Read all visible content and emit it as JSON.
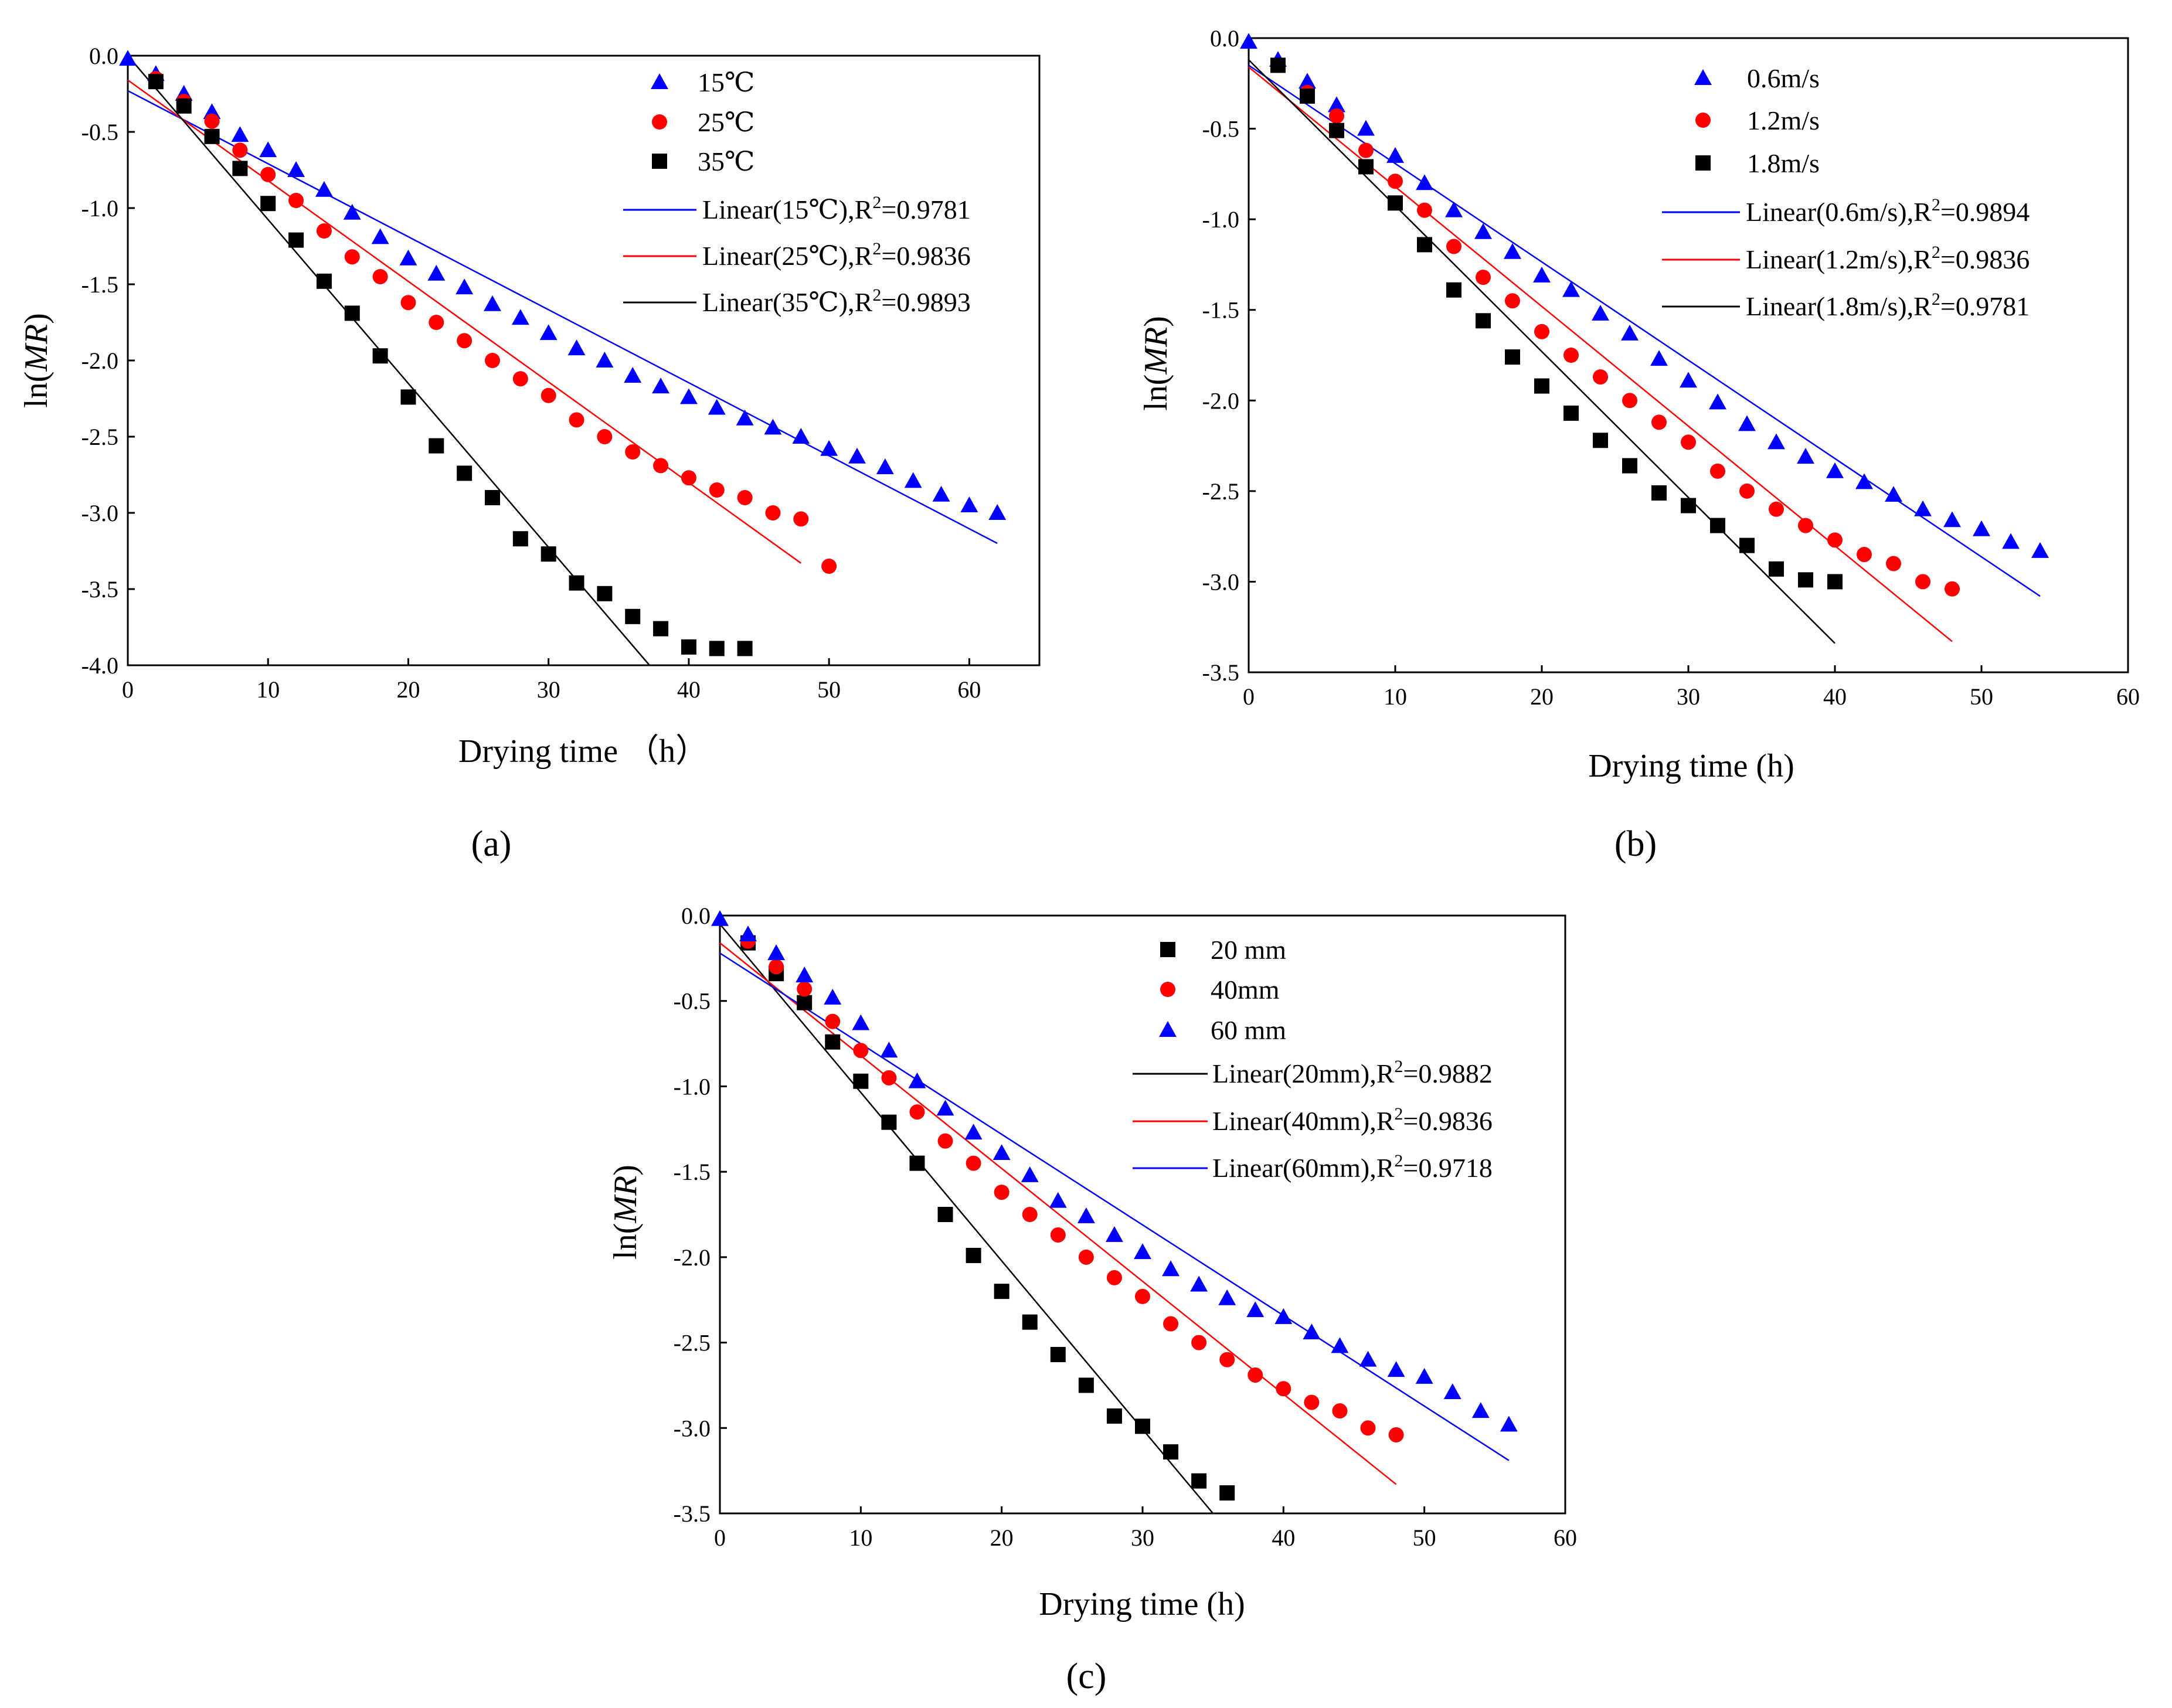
{
  "figure": {
    "colors": {
      "blue": "#0000ff",
      "red": "#ff0000",
      "black": "#000000"
    }
  },
  "chart_data": [
    {
      "type": "scatter",
      "panel_label": "(a)",
      "xlabel": "Drying time （h）",
      "ylabel_prefix": "ln(",
      "ylabel_italic": "MR",
      "ylabel_suffix": ")",
      "xlim": [
        0,
        65
      ],
      "ylim": [
        -4.0,
        0.0
      ],
      "xticks": [
        0,
        10,
        20,
        30,
        40,
        50,
        60
      ],
      "yticks": [
        0.0,
        -0.5,
        -1.0,
        -1.5,
        -2.0,
        -2.5,
        -3.0,
        -3.5,
        -4.0
      ],
      "ytick_labels": [
        "0.0",
        "-0.5",
        "-1.0",
        "-1.5",
        "-2.0",
        "-2.5",
        "-3.0",
        "-3.5",
        "-4.0"
      ],
      "series": [
        {
          "name": "15℃",
          "marker": "triangle",
          "color": "#0000ff",
          "x": [
            0,
            2,
            4,
            6,
            8,
            10,
            12,
            14,
            16,
            18,
            20,
            22,
            24,
            26,
            28,
            30,
            32,
            34,
            36,
            38,
            40,
            42,
            44,
            46,
            48,
            50,
            52,
            54,
            56,
            58,
            60,
            62
          ],
          "y": [
            -0.02,
            -0.12,
            -0.25,
            -0.37,
            -0.52,
            -0.62,
            -0.75,
            -0.88,
            -1.03,
            -1.19,
            -1.33,
            -1.43,
            -1.52,
            -1.63,
            -1.72,
            -1.82,
            -1.92,
            -2.0,
            -2.1,
            -2.17,
            -2.24,
            -2.31,
            -2.38,
            -2.44,
            -2.5,
            -2.58,
            -2.63,
            -2.7,
            -2.79,
            -2.88,
            -2.95,
            -3.0
          ]
        },
        {
          "name": "25℃",
          "marker": "circle",
          "color": "#ff0000",
          "x": [
            2,
            4,
            6,
            8,
            10,
            12,
            14,
            16,
            18,
            20,
            22,
            24,
            26,
            28,
            30,
            32,
            34,
            36,
            38,
            40,
            42,
            44,
            46,
            48,
            50
          ],
          "y": [
            -0.15,
            -0.3,
            -0.43,
            -0.62,
            -0.78,
            -0.95,
            -1.15,
            -1.32,
            -1.45,
            -1.62,
            -1.75,
            -1.87,
            -2.0,
            -2.12,
            -2.23,
            -2.39,
            -2.5,
            -2.6,
            -2.69,
            -2.77,
            -2.85,
            -2.9,
            -3.0,
            -3.04,
            -3.35
          ]
        },
        {
          "name": "35℃",
          "marker": "square",
          "color": "#000000",
          "x": [
            2,
            4,
            6,
            8,
            10,
            12,
            14,
            16,
            18,
            20,
            22,
            24,
            26,
            28,
            30,
            32,
            34,
            36,
            38,
            40,
            42,
            44
          ],
          "y": [
            -0.17,
            -0.33,
            -0.53,
            -0.74,
            -0.97,
            -1.21,
            -1.48,
            -1.69,
            -1.97,
            -2.24,
            -2.56,
            -2.74,
            -2.9,
            -3.17,
            -3.27,
            -3.46,
            -3.53,
            -3.68,
            -3.76,
            -3.88,
            -3.89,
            -3.89
          ]
        }
      ],
      "fits": [
        {
          "name": "Linear(15℃),R",
          "r2": "=0.9781",
          "color": "#0000ff",
          "x": [
            0,
            62
          ],
          "y": [
            -0.23,
            -3.2
          ]
        },
        {
          "name": "Linear(25℃),R",
          "r2": "=0.9836",
          "color": "#ff0000",
          "x": [
            0,
            48
          ],
          "y": [
            -0.16,
            -3.33
          ]
        },
        {
          "name": "Linear(35℃),R",
          "r2": "=0.9893",
          "color": "#000000",
          "x": [
            0,
            37.2
          ],
          "y": [
            0.0,
            -4.0
          ]
        }
      ]
    },
    {
      "type": "scatter",
      "panel_label": "(b)",
      "xlabel": "Drying time (h)",
      "ylabel_prefix": "ln(",
      "ylabel_italic": "MR",
      "ylabel_suffix": ")",
      "xlim": [
        0,
        60
      ],
      "ylim": [
        -3.5,
        0.0
      ],
      "xticks": [
        0,
        10,
        20,
        30,
        40,
        50,
        60
      ],
      "yticks": [
        0.0,
        -0.5,
        -1.0,
        -1.5,
        -2.0,
        -2.5,
        -3.0,
        -3.5
      ],
      "ytick_labels": [
        "0.0",
        "-0.5",
        "-1.0",
        "-1.5",
        "-2.0",
        "-2.5",
        "-3.0",
        "-3.5"
      ],
      "series": [
        {
          "name": "0.6m/s",
          "marker": "triangle",
          "color": "#0000ff",
          "x": [
            0,
            2,
            4,
            6,
            8,
            10,
            12,
            14,
            16,
            18,
            20,
            22,
            24,
            26,
            28,
            30,
            32,
            34,
            36,
            38,
            40,
            42,
            44,
            46,
            48,
            50,
            52,
            54
          ],
          "y": [
            -0.02,
            -0.12,
            -0.24,
            -0.37,
            -0.5,
            -0.65,
            -0.8,
            -0.95,
            -1.07,
            -1.18,
            -1.31,
            -1.39,
            -1.52,
            -1.63,
            -1.77,
            -1.89,
            -2.01,
            -2.13,
            -2.23,
            -2.31,
            -2.39,
            -2.45,
            -2.52,
            -2.6,
            -2.66,
            -2.71,
            -2.78,
            -2.83
          ]
        },
        {
          "name": "1.2m/s",
          "marker": "circle",
          "color": "#ff0000",
          "x": [
            2,
            4,
            6,
            8,
            10,
            12,
            14,
            16,
            18,
            20,
            22,
            24,
            26,
            28,
            30,
            32,
            34,
            36,
            38,
            40,
            42,
            44,
            46,
            48
          ],
          "y": [
            -0.15,
            -0.3,
            -0.43,
            -0.62,
            -0.79,
            -0.95,
            -1.15,
            -1.32,
            -1.45,
            -1.62,
            -1.75,
            -1.87,
            -2.0,
            -2.12,
            -2.23,
            -2.39,
            -2.5,
            -2.6,
            -2.69,
            -2.77,
            -2.85,
            -2.9,
            -3.0,
            -3.04
          ]
        },
        {
          "name": "1.8m/s",
          "marker": "square",
          "color": "#000000",
          "x": [
            2,
            4,
            6,
            8,
            10,
            12,
            14,
            16,
            18,
            20,
            22,
            24,
            26,
            28,
            30,
            32,
            34,
            36,
            38,
            40
          ],
          "y": [
            -0.15,
            -0.32,
            -0.51,
            -0.71,
            -0.91,
            -1.14,
            -1.39,
            -1.56,
            -1.76,
            -1.92,
            -2.07,
            -2.22,
            -2.36,
            -2.51,
            -2.58,
            -2.69,
            -2.8,
            -2.93,
            -2.99,
            -3.0
          ]
        }
      ],
      "fits": [
        {
          "name": "Linear(0.6m/s),R",
          "r2": "=0.9894",
          "color": "#0000ff",
          "x": [
            0,
            54
          ],
          "y": [
            -0.15,
            -3.08
          ]
        },
        {
          "name": "Linear(1.2m/s),R",
          "r2": "=0.9836",
          "color": "#ff0000",
          "x": [
            0,
            48
          ],
          "y": [
            -0.16,
            -3.33
          ]
        },
        {
          "name": "Linear(1.8m/s),R",
          "r2": "=0.9781",
          "color": "#000000",
          "x": [
            0,
            40
          ],
          "y": [
            -0.12,
            -3.34
          ]
        }
      ]
    },
    {
      "type": "scatter",
      "panel_label": "(c)",
      "xlabel": "Drying time (h)",
      "ylabel_prefix": "ln(",
      "ylabel_italic": "MR",
      "ylabel_suffix": ")",
      "xlim": [
        0,
        60
      ],
      "ylim": [
        -3.5,
        0.0
      ],
      "xticks": [
        0,
        10,
        20,
        30,
        40,
        50,
        60
      ],
      "yticks": [
        0.0,
        -0.5,
        -1.0,
        -1.5,
        -2.0,
        -2.5,
        -3.0,
        -3.5
      ],
      "ytick_labels": [
        "0.0",
        "-0.5",
        "-1.0",
        "-1.5",
        "-2.0",
        "-2.5",
        "-3.0",
        "-3.5"
      ],
      "series": [
        {
          "name": "20 mm",
          "marker": "square",
          "color": "#000000",
          "x": [
            2,
            4,
            6,
            8,
            10,
            12,
            14,
            16,
            18,
            20,
            22,
            24,
            26,
            28,
            30,
            32,
            34,
            36
          ],
          "y": [
            -0.16,
            -0.34,
            -0.51,
            -0.74,
            -0.97,
            -1.21,
            -1.45,
            -1.75,
            -1.99,
            -2.2,
            -2.38,
            -2.57,
            -2.75,
            -2.93,
            -2.99,
            -3.14,
            -3.31,
            -3.38
          ]
        },
        {
          "name": "40mm",
          "marker": "circle",
          "color": "#ff0000",
          "x": [
            2,
            4,
            6,
            8,
            10,
            12,
            14,
            16,
            18,
            20,
            22,
            24,
            26,
            28,
            30,
            32,
            34,
            36,
            38,
            40,
            42,
            44,
            46,
            48
          ],
          "y": [
            -0.15,
            -0.3,
            -0.43,
            -0.62,
            -0.79,
            -0.95,
            -1.15,
            -1.32,
            -1.45,
            -1.62,
            -1.75,
            -1.87,
            -2.0,
            -2.12,
            -2.23,
            -2.39,
            -2.5,
            -2.6,
            -2.69,
            -2.77,
            -2.85,
            -2.9,
            -3.0,
            -3.04
          ]
        },
        {
          "name": "60 mm",
          "marker": "triangle",
          "color": "#0000ff",
          "x": [
            0,
            2,
            4,
            6,
            8,
            10,
            12,
            14,
            16,
            18,
            20,
            22,
            24,
            26,
            28,
            30,
            32,
            34,
            36,
            38,
            40,
            42,
            44,
            46,
            48,
            50,
            52,
            54,
            56
          ],
          "y": [
            -0.02,
            -0.11,
            -0.22,
            -0.35,
            -0.48,
            -0.63,
            -0.79,
            -0.97,
            -1.13,
            -1.27,
            -1.39,
            -1.52,
            -1.67,
            -1.76,
            -1.87,
            -1.97,
            -2.07,
            -2.16,
            -2.24,
            -2.31,
            -2.35,
            -2.44,
            -2.52,
            -2.6,
            -2.66,
            -2.7,
            -2.79,
            -2.9,
            -2.98
          ]
        }
      ],
      "fits": [
        {
          "name": "Linear(20mm),R",
          "r2": "=0.9882",
          "color": "#000000",
          "x": [
            0,
            35
          ],
          "y": [
            -0.05,
            -3.5
          ]
        },
        {
          "name": "Linear(40mm),R",
          "r2": "=0.9836",
          "color": "#ff0000",
          "x": [
            0,
            48
          ],
          "y": [
            -0.16,
            -3.33
          ]
        },
        {
          "name": "Linear(60mm),R",
          "r2": "=0.9718",
          "color": "#0000ff",
          "x": [
            0,
            56
          ],
          "y": [
            -0.22,
            -3.19
          ]
        }
      ]
    }
  ]
}
